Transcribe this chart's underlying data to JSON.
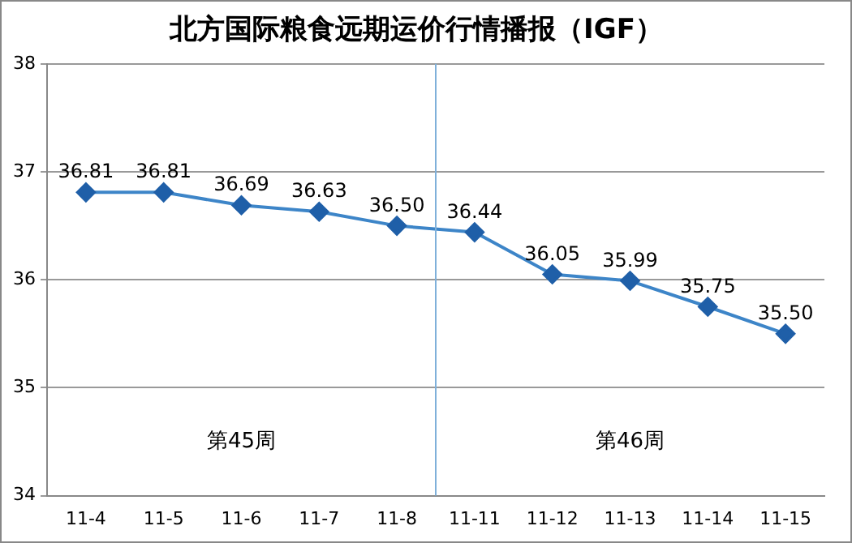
{
  "chart_data": {
    "type": "line",
    "title": "北方国际粮食远期运价行情播报（IGF）",
    "categories": [
      "11-4",
      "11-5",
      "11-6",
      "11-7",
      "11-8",
      "11-11",
      "11-12",
      "11-13",
      "11-14",
      "11-15"
    ],
    "series": [
      {
        "color": "#3d85c8",
        "values": [
          36.81,
          36.81,
          36.69,
          36.63,
          36.5,
          36.44,
          36.05,
          35.99,
          35.75,
          35.5
        ],
        "value_labels": [
          "36.81",
          "36.81",
          "36.69",
          "36.63",
          "36.50",
          "36.44",
          "36.05",
          "35.99",
          "35.75",
          "35.50"
        ]
      }
    ],
    "ylim": [
      34,
      38
    ],
    "yticks": [
      34,
      35,
      36,
      37,
      38
    ],
    "grid": "y",
    "marker": "diamond",
    "line_style": "solid",
    "legend": false,
    "ref_lines": [
      {
        "axis": "x",
        "value": "11-8",
        "color": "#7fb0da"
      }
    ],
    "annotations": [
      "第45周",
      "第46周"
    ]
  }
}
